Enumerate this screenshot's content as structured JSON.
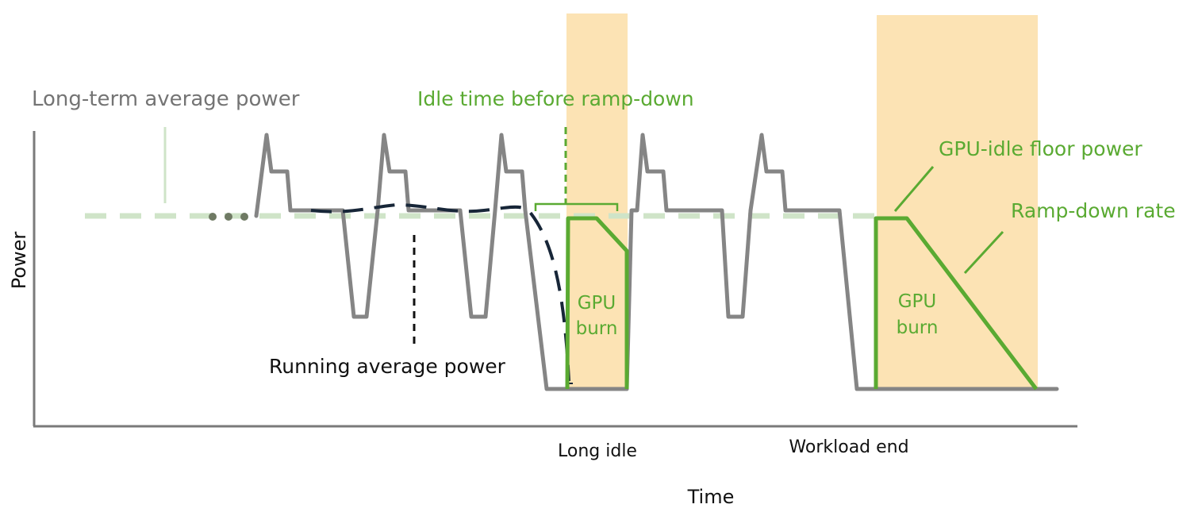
{
  "axes": {
    "y_label": "Power",
    "x_label": "Time"
  },
  "annotations": {
    "long_term_average": "Long-term average power",
    "idle_time_before_ramp_down": "Idle time before ramp-down",
    "gpu_idle_floor_power": "GPU-idle floor power",
    "ramp_down_rate": "Ramp-down rate",
    "running_average": "Running average power",
    "long_idle": "Long idle",
    "workload_end": "Workload end"
  },
  "gpu_burn_regions": [
    {
      "line1": "GPU",
      "line2": "burn"
    },
    {
      "line1": "GPU",
      "line2": "burn"
    }
  ],
  "colors": {
    "power_trace": "#858585",
    "gpu_burn_trace": "#5aaa32",
    "highlight_band": "#fce3b4",
    "long_term_avg_line": "#cfe4c8",
    "running_avg_line": "#172638",
    "axis": "#7a7a7a",
    "label_gray": "#747474",
    "label_green": "#5aaa32",
    "label_black": "#111111",
    "dots": "#6f7a64"
  }
}
